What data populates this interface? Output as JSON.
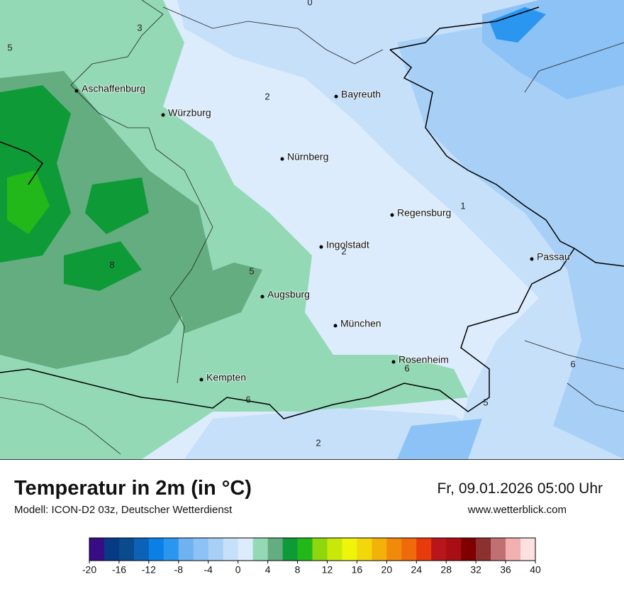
{
  "header": {
    "title": "Temperatur in 2m (in °C)",
    "subtitle": "Modell: ICON-D2 03z, Deutscher Wetterdienst",
    "date": "Fr, 09.01.2026 05:00 Uhr",
    "website": "www.wetterblick.com"
  },
  "map": {
    "cities": [
      "Aschaffenburg",
      "Würzburg",
      "Bayreuth",
      "Nürnberg",
      "Regensburg",
      "Ingolstadt",
      "Passau",
      "Augsburg",
      "München",
      "Rosenheim",
      "Kempten"
    ],
    "contour_labels": [
      0,
      3,
      5,
      2,
      1,
      8,
      5,
      2,
      6,
      6,
      5,
      6,
      2
    ]
  },
  "colorbar": {
    "lim": [
      -20,
      40
    ],
    "ticks": [
      -20,
      -16,
      -12,
      -8,
      -4,
      0,
      4,
      8,
      12,
      16,
      20,
      24,
      28,
      32,
      36,
      40
    ],
    "colors": [
      "#380c84",
      "#073a85",
      "#0a4a8e",
      "#0b62b8",
      "#0a80e6",
      "#2a96f0",
      "#6fb2f2",
      "#8cc2f5",
      "#a8d0f7",
      "#c6e0fa",
      "#dcecfc",
      "#94d9b5",
      "#63ad80",
      "#0f9a38",
      "#22b81a",
      "#8ed60e",
      "#c8e80a",
      "#eef40a",
      "#f2d80a",
      "#f2b20a",
      "#f08a0a",
      "#ee6a0a",
      "#e83a0a",
      "#b8161a",
      "#a80e14",
      "#800000",
      "#8c3030",
      "#c07070",
      "#f2b0b0",
      "#fde0e0"
    ]
  }
}
